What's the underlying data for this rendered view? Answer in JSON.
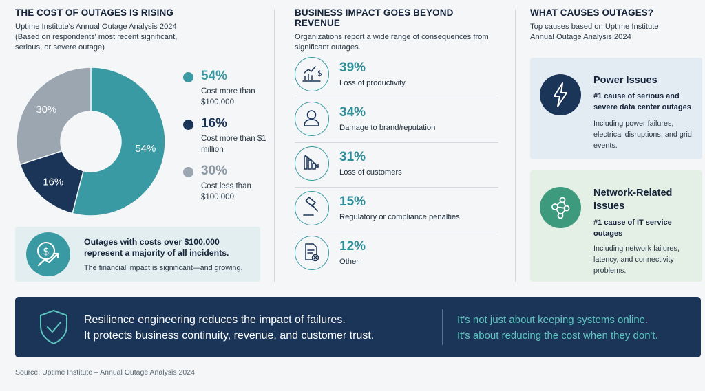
{
  "left_panel": {
    "title": "THE COST OF OUTAGES IS RISING",
    "subtitle_line1": "Uptime Institute's Annual Outage Analysis 2024",
    "subtitle_line2": "(Based on respondents' most recent significant, serious, or severe outage)",
    "callout": {
      "icon": "dollar-growth-icon",
      "headline": "Outages with costs over $100,000 represent a majority of all incidents.",
      "note": "The financial impact is significant—and growing."
    }
  },
  "chart_data": {
    "type": "pie",
    "style": "donut",
    "slices": [
      {
        "label": "54%",
        "value": 54,
        "description": "Cost more than $100,000",
        "color": "#3a9aa3"
      },
      {
        "label": "16%",
        "value": 16,
        "description": "Cost more than $1 million",
        "color": "#1b3558"
      },
      {
        "label": "30%",
        "value": 30,
        "description": "Cost less than $100,000",
        "color": "#9ba6b1"
      }
    ],
    "legend_placement": "right"
  },
  "middle_panel": {
    "title": "BUSINESS IMPACT GOES BEYOND REVENUE",
    "subtitle": "Organizations report a wide range of consequences from significant outages.",
    "items": [
      {
        "pct": "39%",
        "label": "Loss of productivity",
        "icon": "productivity-chart-icon"
      },
      {
        "pct": "34%",
        "label": "Damage to brand/reputation",
        "icon": "person-icon"
      },
      {
        "pct": "31%",
        "label": "Loss of customers",
        "icon": "declining-bars-icon"
      },
      {
        "pct": "15%",
        "label": "Regulatory or compliance penalties",
        "icon": "gavel-icon"
      },
      {
        "pct": "12%",
        "label": "Other",
        "icon": "document-x-icon"
      }
    ]
  },
  "right_panel": {
    "title": "WHAT CAUSES OUTAGES?",
    "subtitle": "Top causes based on Uptime Institute Annual Outage Analysis 2024",
    "causes": [
      {
        "title": "Power Issues",
        "summary": "#1 cause of serious and severe data center outages",
        "detail": "Including power failures, electrical disruptions, and grid events.",
        "icon": "lightning-icon",
        "color": "#1b3558"
      },
      {
        "title": "Network-Related Issues",
        "summary": "#1 cause of IT service outages",
        "detail": "Including network failures, latency, and connectivity problems.",
        "icon": "network-nodes-icon",
        "color": "#3e9a7d"
      }
    ]
  },
  "banner": {
    "icon": "shield-check-icon",
    "left_line1": "Resilience engineering reduces the impact of failures.",
    "left_line2": "It protects business continuity, revenue, and customer trust.",
    "right_line1": "It's not just about keeping systems online.",
    "right_line2": "It's about reducing the cost when they don't."
  },
  "source": "Source: Uptime Institute – Annual Outage Analysis 2024"
}
